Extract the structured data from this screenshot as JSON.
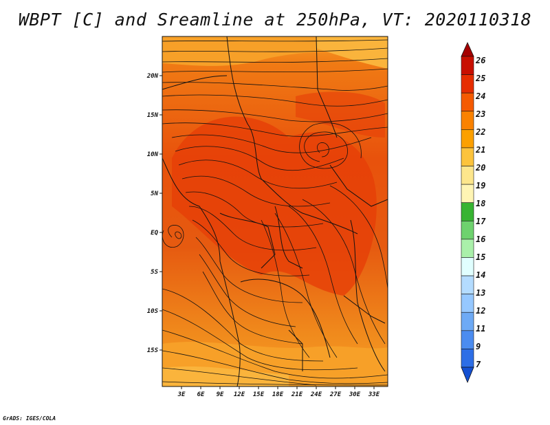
{
  "title": "WBPT [C] and Sreamline at 250hPa, VT: 2020110318",
  "credit": "GrADS: IGES/COLA",
  "map": {
    "lat_labels": [
      "20N",
      "15N",
      "10N",
      "5N",
      "EQ",
      "5S",
      "10S",
      "15S"
    ],
    "lon_labels": [
      "3E",
      "6E",
      "9E",
      "12E",
      "15E",
      "18E",
      "21E",
      "24E",
      "27E",
      "30E",
      "33E"
    ],
    "background_color": "#e64a0a"
  },
  "colorbar": {
    "labels": [
      "26",
      "25",
      "24",
      "23",
      "22",
      "21",
      "20",
      "19",
      "18",
      "17",
      "16",
      "15",
      "14",
      "13",
      "12",
      "11",
      "9",
      "7"
    ],
    "colors": [
      "#a50000",
      "#c80f00",
      "#e62d00",
      "#f55a00",
      "#fa8200",
      "#fca000",
      "#fcc33c",
      "#fde68c",
      "#fff5b4",
      "#37b432",
      "#6ed26e",
      "#aaf0aa",
      "#e1ffff",
      "#b4dcff",
      "#96c8ff",
      "#6eaaf5",
      "#4b8cf0",
      "#2d6ee6",
      "#1450d2"
    ]
  }
}
